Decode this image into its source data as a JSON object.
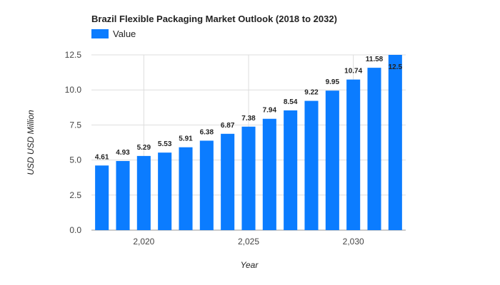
{
  "chart_data": {
    "type": "bar",
    "title": "Brazil Flexible Packaging Market Outlook (2018 to 2032)",
    "xlabel": "Year",
    "ylabel": "USD USD Million",
    "legend": {
      "position": "top-left",
      "entries": [
        "Value"
      ]
    },
    "x": [
      2018,
      2019,
      2020,
      2021,
      2022,
      2023,
      2024,
      2025,
      2026,
      2027,
      2028,
      2029,
      2030,
      2031,
      2032
    ],
    "series": [
      {
        "name": "Value",
        "color": "#0b7cff",
        "values": [
          4.61,
          4.93,
          5.29,
          5.53,
          5.91,
          6.38,
          6.87,
          7.38,
          7.94,
          8.54,
          9.22,
          9.95,
          10.74,
          11.58,
          12.5
        ]
      }
    ],
    "data_labels": [
      "4.61",
      "4.93",
      "5.29",
      "5.53",
      "5.91",
      "6.38",
      "6.87",
      "7.38",
      "7.94",
      "8.54",
      "9.22",
      "9.95",
      "10.74",
      "11.58",
      "12.5"
    ],
    "ylim": [
      0,
      12.5
    ],
    "yticks": [
      "0.0",
      "2.5",
      "5.0",
      "7.5",
      "10.0",
      "12.5"
    ],
    "ytick_values": [
      0,
      2.5,
      5,
      7.5,
      10,
      12.5
    ],
    "xticks": [
      "2,020",
      "2,025",
      "2,030"
    ],
    "xtick_values": [
      2020,
      2025,
      2030
    ],
    "xlim": [
      2017.5,
      2032.5
    ],
    "grid": true
  }
}
